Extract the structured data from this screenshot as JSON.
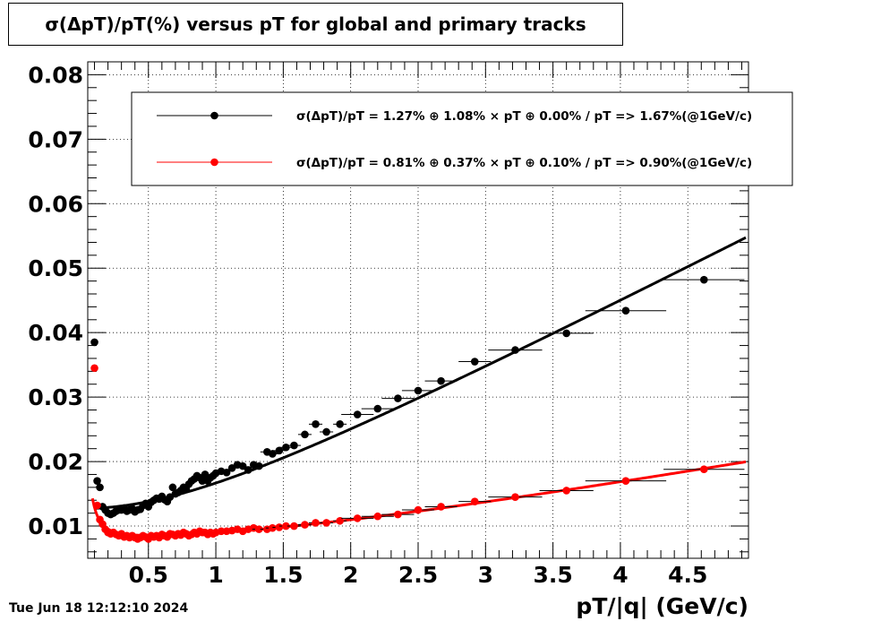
{
  "title": "σ(ΔpT)/pT(%) versus pT for global and primary tracks",
  "timestamp": "Tue Jun 18 12:12:10 2024",
  "chart_data": {
    "type": "scatter",
    "title": "σ(ΔpT)/pT(%) versus pT for global and primary tracks",
    "xlabel": "pT/|q| (GeV/c)",
    "ylabel": "",
    "xlim": [
      0.05,
      4.95
    ],
    "ylim": [
      0.005,
      0.082
    ],
    "x_ticks": [
      "0.5",
      "1",
      "1.5",
      "2",
      "2.5",
      "3",
      "3.5",
      "4",
      "4.5"
    ],
    "x_tick_values": [
      0.5,
      1,
      1.5,
      2,
      2.5,
      3,
      3.5,
      4,
      4.5
    ],
    "y_ticks": [
      "0.01",
      "0.02",
      "0.03",
      "0.04",
      "0.05",
      "0.06",
      "0.07",
      "0.08"
    ],
    "y_tick_values": [
      0.01,
      0.02,
      0.03,
      0.04,
      0.05,
      0.06,
      0.07,
      0.08
    ],
    "grid": true,
    "legend_position": "top",
    "series": [
      {
        "name": "σ(ΔpT)/pT =  1.27% ⊕  1.08% × pT ⊕  0.00% / pT =>  1.67%(@1GeV/c)",
        "color": "#000000",
        "fit": {
          "a": 0.0127,
          "b": 0.0108,
          "c": 0.0,
          "xmin": 0.1,
          "xmax": 4.93
        },
        "points": [
          [
            0.1,
            0.0385
          ],
          [
            0.12,
            0.017
          ],
          [
            0.14,
            0.016
          ],
          [
            0.16,
            0.013
          ],
          [
            0.18,
            0.0125
          ],
          [
            0.2,
            0.012
          ],
          [
            0.22,
            0.0118
          ],
          [
            0.24,
            0.012
          ],
          [
            0.26,
            0.0123
          ],
          [
            0.28,
            0.0125
          ],
          [
            0.3,
            0.0125
          ],
          [
            0.32,
            0.0128
          ],
          [
            0.34,
            0.0123
          ],
          [
            0.36,
            0.0125
          ],
          [
            0.38,
            0.0127
          ],
          [
            0.4,
            0.0122
          ],
          [
            0.42,
            0.0125
          ],
          [
            0.44,
            0.0126
          ],
          [
            0.46,
            0.0132
          ],
          [
            0.48,
            0.0135
          ],
          [
            0.5,
            0.013
          ],
          [
            0.52,
            0.0137
          ],
          [
            0.54,
            0.014
          ],
          [
            0.56,
            0.0143
          ],
          [
            0.58,
            0.0142
          ],
          [
            0.6,
            0.0146
          ],
          [
            0.62,
            0.0141
          ],
          [
            0.64,
            0.0138
          ],
          [
            0.66,
            0.0145
          ],
          [
            0.68,
            0.016
          ],
          [
            0.7,
            0.015
          ],
          [
            0.72,
            0.0152
          ],
          [
            0.74,
            0.0155
          ],
          [
            0.76,
            0.016
          ],
          [
            0.78,
            0.0157
          ],
          [
            0.8,
            0.0165
          ],
          [
            0.82,
            0.017
          ],
          [
            0.84,
            0.0173
          ],
          [
            0.86,
            0.0178
          ],
          [
            0.88,
            0.0175
          ],
          [
            0.9,
            0.017
          ],
          [
            0.92,
            0.018
          ],
          [
            0.94,
            0.017
          ],
          [
            0.96,
            0.0175
          ],
          [
            0.98,
            0.0178
          ],
          [
            1.0,
            0.0182
          ],
          [
            1.04,
            0.0185
          ],
          [
            1.08,
            0.0183
          ],
          [
            1.12,
            0.019
          ],
          [
            1.16,
            0.0195
          ],
          [
            1.2,
            0.0193
          ],
          [
            1.24,
            0.0187
          ],
          [
            1.28,
            0.0195
          ],
          [
            1.32,
            0.0193
          ],
          [
            1.38,
            0.0215
          ],
          [
            1.42,
            0.0212
          ],
          [
            1.47,
            0.0217
          ],
          [
            1.52,
            0.0222
          ],
          [
            1.58,
            0.0225
          ],
          [
            1.66,
            0.0242
          ],
          [
            1.74,
            0.0258
          ],
          [
            1.82,
            0.0246
          ],
          [
            1.92,
            0.0258
          ],
          [
            2.05,
            0.0273
          ],
          [
            2.2,
            0.0282
          ],
          [
            2.35,
            0.0298
          ],
          [
            2.5,
            0.031
          ],
          [
            2.67,
            0.0325
          ],
          [
            2.92,
            0.0355
          ],
          [
            3.22,
            0.0373
          ],
          [
            3.6,
            0.0399
          ],
          [
            4.04,
            0.0434
          ],
          [
            4.62,
            0.0482
          ]
        ]
      },
      {
        "name": "σ(ΔpT)/pT =  0.81% ⊕  0.37% × pT ⊕  0.10% / pT =>  0.90%(@1GeV/c)",
        "color": "#ff0000",
        "fit": {
          "a": 0.0081,
          "b": 0.0037,
          "c": 0.001,
          "xmin": 0.085,
          "xmax": 4.93
        },
        "points": [
          [
            0.1,
            0.0345
          ],
          [
            0.12,
            0.0132
          ],
          [
            0.14,
            0.011
          ],
          [
            0.16,
            0.0103
          ],
          [
            0.18,
            0.0095
          ],
          [
            0.2,
            0.009
          ],
          [
            0.22,
            0.0088
          ],
          [
            0.24,
            0.009
          ],
          [
            0.26,
            0.0087
          ],
          [
            0.28,
            0.0085
          ],
          [
            0.3,
            0.0088
          ],
          [
            0.32,
            0.0083
          ],
          [
            0.34,
            0.0085
          ],
          [
            0.36,
            0.0082
          ],
          [
            0.38,
            0.0085
          ],
          [
            0.4,
            0.0082
          ],
          [
            0.42,
            0.008
          ],
          [
            0.44,
            0.0082
          ],
          [
            0.46,
            0.0085
          ],
          [
            0.48,
            0.0083
          ],
          [
            0.5,
            0.008
          ],
          [
            0.52,
            0.0085
          ],
          [
            0.54,
            0.0083
          ],
          [
            0.56,
            0.0085
          ],
          [
            0.58,
            0.0082
          ],
          [
            0.6,
            0.0087
          ],
          [
            0.62,
            0.0085
          ],
          [
            0.64,
            0.0083
          ],
          [
            0.66,
            0.0088
          ],
          [
            0.68,
            0.0087
          ],
          [
            0.7,
            0.0085
          ],
          [
            0.72,
            0.0088
          ],
          [
            0.74,
            0.0086
          ],
          [
            0.76,
            0.009
          ],
          [
            0.78,
            0.0088
          ],
          [
            0.8,
            0.0085
          ],
          [
            0.82,
            0.0087
          ],
          [
            0.84,
            0.009
          ],
          [
            0.86,
            0.0088
          ],
          [
            0.88,
            0.0092
          ],
          [
            0.9,
            0.009
          ],
          [
            0.92,
            0.009
          ],
          [
            0.94,
            0.0087
          ],
          [
            0.96,
            0.009
          ],
          [
            0.98,
            0.0088
          ],
          [
            1.0,
            0.009
          ],
          [
            1.04,
            0.0092
          ],
          [
            1.08,
            0.0092
          ],
          [
            1.12,
            0.0093
          ],
          [
            1.16,
            0.0095
          ],
          [
            1.2,
            0.0092
          ],
          [
            1.24,
            0.0095
          ],
          [
            1.28,
            0.0097
          ],
          [
            1.32,
            0.0095
          ],
          [
            1.38,
            0.0095
          ],
          [
            1.42,
            0.0097
          ],
          [
            1.47,
            0.0098
          ],
          [
            1.52,
            0.01
          ],
          [
            1.58,
            0.01
          ],
          [
            1.66,
            0.0102
          ],
          [
            1.74,
            0.0105
          ],
          [
            1.82,
            0.0105
          ],
          [
            1.92,
            0.0108
          ],
          [
            2.05,
            0.0112
          ],
          [
            2.2,
            0.0115
          ],
          [
            2.35,
            0.0118
          ],
          [
            2.5,
            0.0125
          ],
          [
            2.67,
            0.013
          ],
          [
            2.92,
            0.0138
          ],
          [
            3.22,
            0.0145
          ],
          [
            3.6,
            0.0155
          ],
          [
            4.04,
            0.017
          ],
          [
            4.62,
            0.0188
          ]
        ]
      }
    ]
  }
}
